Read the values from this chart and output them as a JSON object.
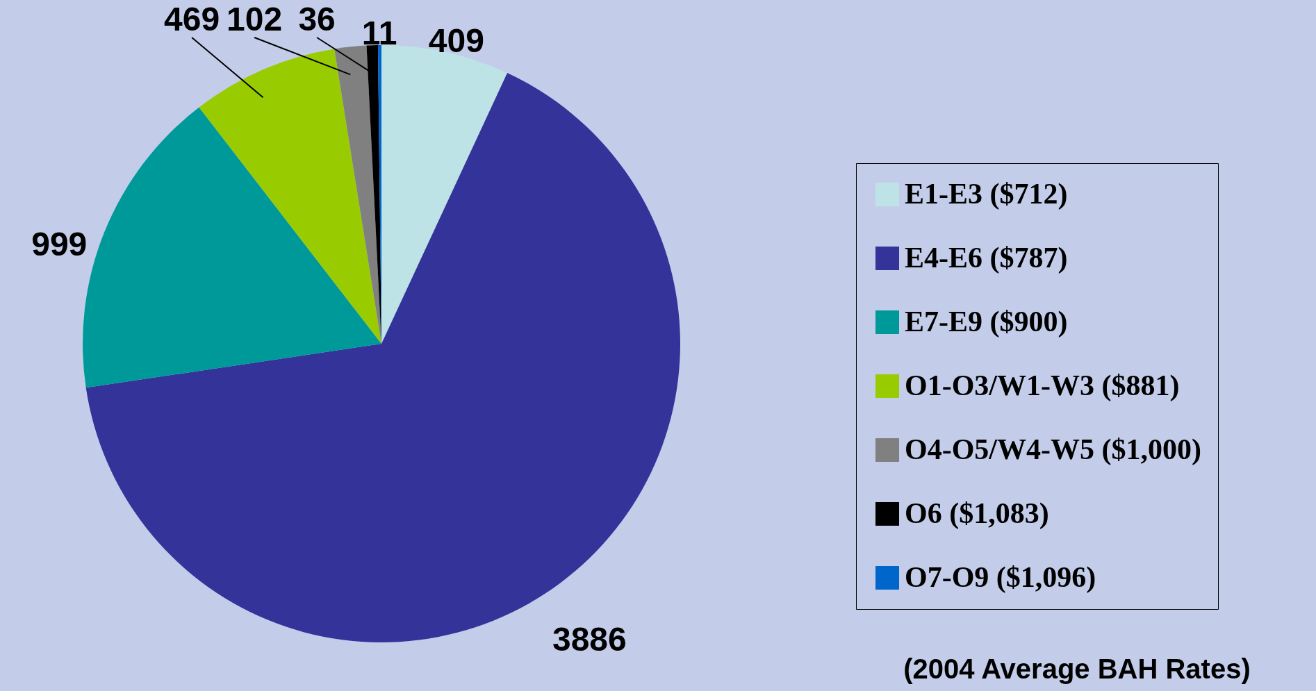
{
  "chart_data": {
    "type": "pie",
    "categories": [
      "E1-E3 ($712)",
      "E4-E6 ($787)",
      "E7-E9 ($900)",
      "O1-O3/W1-W3 ($881)",
      "O4-O5/W4-W5 ($1,000)",
      "O6 ($1,083)",
      "O7-O9 ($1,096)"
    ],
    "values": [
      409,
      3886,
      999,
      469,
      102,
      36,
      11
    ],
    "colors": [
      "#bde3e6",
      "#333399",
      "#009999",
      "#99cc00",
      "#808080",
      "#000000",
      "#0066cc"
    ],
    "data_labels": true,
    "legend": "right",
    "annotations": [
      "(2004 Average BAH Rates)"
    ]
  }
}
